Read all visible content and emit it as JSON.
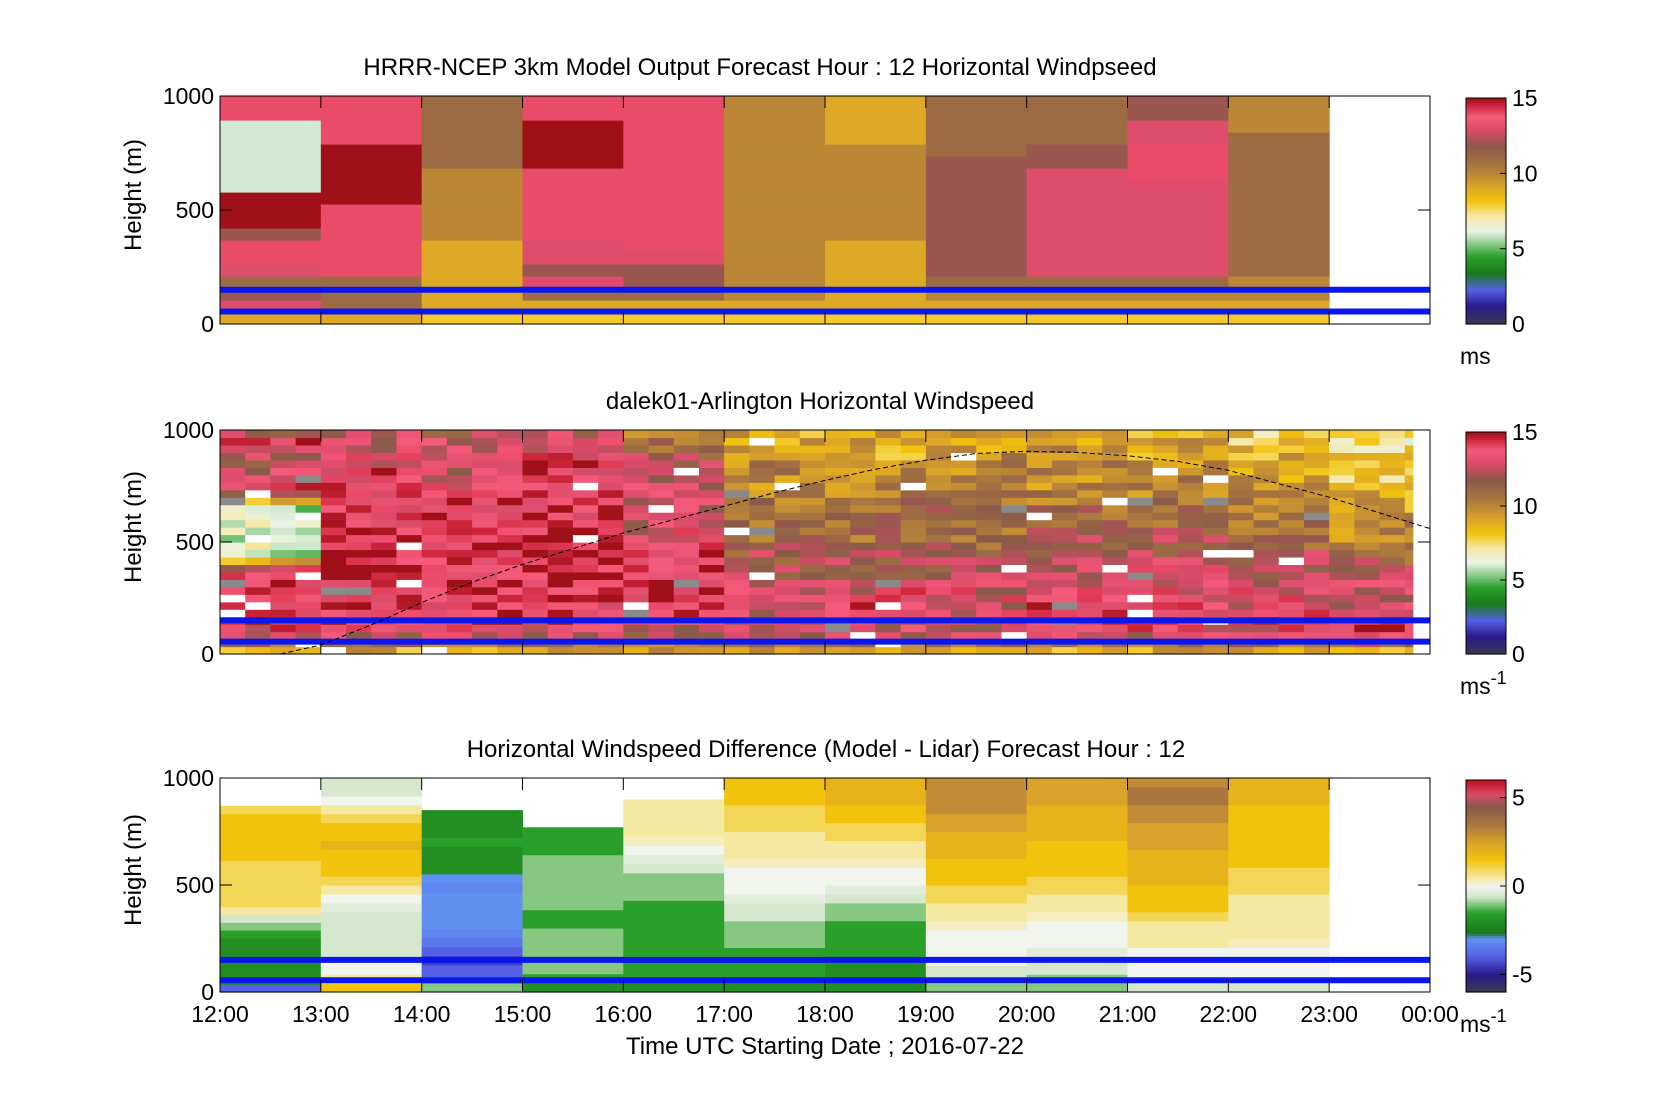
{
  "chart_data": [
    {
      "type": "heatmap",
      "title": "HRRR-NCEP 3km Model Output   Forecast Hour : 12 Horizontal Windpseed",
      "ylabel": "Height (m)",
      "ylim": [
        0,
        1000
      ],
      "yticks": [
        "0",
        "500",
        "1000"
      ],
      "xlim_hours": [
        12,
        24
      ],
      "colorbar": {
        "min": 0,
        "max": 15,
        "ticks": [
          "0",
          "5",
          "10",
          "15"
        ],
        "unit_main": "ms",
        "unit_sup": ""
      },
      "color_stops": [
        [
          0,
          "#3a3a50"
        ],
        [
          1.2,
          "#2a1a8a"
        ],
        [
          2.3,
          "#5560e6"
        ],
        [
          3.4,
          "#1a7a1a"
        ],
        [
          4.5,
          "#2aa02a"
        ],
        [
          6.2,
          "#eaf4e8"
        ],
        [
          7.2,
          "#f5e8a0"
        ],
        [
          8.2,
          "#f2c30c"
        ],
        [
          9.2,
          "#d9a22a"
        ],
        [
          10.5,
          "#a9763f"
        ],
        [
          11.8,
          "#8a5a4a"
        ],
        [
          12.8,
          "#d84a68"
        ],
        [
          13.8,
          "#f55a7a"
        ],
        [
          14.5,
          "#d0263e"
        ],
        [
          15,
          "#a01018"
        ]
      ],
      "reference_lines_m": [
        150,
        55
      ],
      "blocks": [
        {
          "hour": 12,
          "v": [
            9,
            13,
            12,
            11,
            13,
            14,
            14,
            12,
            15,
            15,
            15,
            6,
            6,
            6,
            6,
            6,
            6,
            14,
            14
          ]
        },
        {
          "hour": 13,
          "v": [
            9,
            11,
            11,
            11,
            14,
            14,
            14,
            14,
            14,
            14,
            15,
            15,
            15,
            15,
            15,
            14,
            14,
            14,
            14
          ]
        },
        {
          "hour": 14,
          "v": [
            8,
            9,
            9,
            9,
            9,
            9,
            9,
            10,
            10,
            10,
            10,
            10,
            10,
            11,
            11,
            11,
            11,
            11,
            11
          ]
        },
        {
          "hour": 15,
          "v": [
            8,
            9,
            11,
            13,
            12,
            13,
            13,
            14,
            14,
            14,
            14,
            14,
            14,
            15,
            15,
            15,
            15,
            14,
            14
          ]
        },
        {
          "hour": 16,
          "v": [
            8,
            9,
            11,
            12,
            12,
            13,
            14,
            14,
            14,
            14,
            14,
            14,
            14,
            14,
            14,
            14,
            14,
            14,
            14
          ]
        },
        {
          "hour": 17,
          "v": [
            8,
            9,
            10,
            10,
            10,
            10,
            10,
            10,
            10,
            10,
            10,
            10,
            10,
            10,
            10,
            10,
            10,
            10,
            10
          ]
        },
        {
          "hour": 18,
          "v": [
            8,
            9,
            9,
            9,
            9,
            9,
            9,
            10,
            10,
            10,
            10,
            10,
            10,
            10,
            10,
            9,
            9,
            9,
            9
          ]
        },
        {
          "hour": 19,
          "v": [
            8,
            9,
            10,
            11,
            12,
            12,
            12,
            12,
            12,
            12,
            12,
            12,
            12,
            12,
            11,
            11,
            11,
            11,
            11
          ]
        },
        {
          "hour": 20,
          "v": [
            8,
            9,
            10,
            11,
            13,
            13,
            13,
            13,
            13,
            13,
            13,
            13,
            13,
            12,
            12,
            11,
            11,
            11,
            11
          ]
        },
        {
          "hour": 21,
          "v": [
            8,
            9,
            10,
            11,
            13,
            13,
            13,
            13,
            13,
            13,
            13,
            13,
            14,
            14,
            14,
            13,
            13,
            12,
            12
          ]
        },
        {
          "hour": 22,
          "v": [
            8,
            9,
            10,
            10,
            11,
            11,
            11,
            11,
            11,
            11,
            11,
            11,
            11,
            11,
            11,
            11,
            10,
            10,
            10
          ]
        }
      ]
    },
    {
      "type": "heatmap",
      "title": "dalek01-Arlington  Horizontal Windspeed",
      "ylabel": "Height (m)",
      "ylim": [
        0,
        1000
      ],
      "yticks": [
        "0",
        "500",
        "1000"
      ],
      "xlim_hours": [
        12,
        24
      ],
      "colorbar": {
        "min": 0,
        "max": 15,
        "ticks": [
          "0",
          "5",
          "10",
          "15"
        ],
        "unit_main": "ms",
        "unit_sup": "-1"
      },
      "reference_lines_m": [
        150,
        55
      ],
      "profile_segments_per_hour": 4,
      "profile_end_hour": 23.83,
      "hourly_mean": [
        {
          "hour": 12,
          "v": [
            9,
            13,
            14,
            14,
            14,
            14,
            6,
            6,
            6,
            6,
            14,
            13,
            12,
            14,
            10
          ]
        },
        {
          "hour": 13,
          "v": [
            9,
            13,
            14,
            14,
            14,
            15,
            15,
            15,
            14,
            14,
            14,
            14,
            13,
            13,
            12
          ]
        },
        {
          "hour": 14,
          "v": [
            9,
            13,
            14,
            14,
            15,
            14,
            14,
            14,
            14,
            14,
            14,
            13,
            13,
            13,
            11
          ]
        },
        {
          "hour": 15,
          "v": [
            9,
            13,
            14,
            14,
            14,
            15,
            15,
            15,
            14,
            14,
            14,
            14,
            14,
            13,
            12
          ]
        },
        {
          "hour": 16,
          "v": [
            9,
            12,
            14,
            14,
            14,
            14,
            14,
            13,
            13,
            13,
            13,
            13,
            12,
            11,
            10
          ]
        },
        {
          "hour": 17,
          "v": [
            9,
            13,
            13,
            13,
            13,
            12,
            12,
            11,
            11,
            11,
            10,
            10,
            10,
            9,
            9
          ]
        },
        {
          "hour": 18,
          "v": [
            9,
            13,
            13,
            14,
            13,
            12,
            12,
            11,
            11,
            11,
            10,
            10,
            9,
            9,
            9
          ]
        },
        {
          "hour": 19,
          "v": [
            9,
            13,
            13,
            13,
            13,
            12,
            12,
            11,
            11,
            11,
            10,
            10,
            10,
            9,
            9
          ]
        },
        {
          "hour": 20,
          "v": [
            9,
            13,
            14,
            14,
            13,
            13,
            12,
            12,
            11,
            11,
            10,
            10,
            10,
            9,
            9
          ]
        },
        {
          "hour": 21,
          "v": [
            9,
            13,
            14,
            14,
            13,
            13,
            12,
            12,
            11,
            11,
            10,
            10,
            9,
            9,
            9
          ]
        },
        {
          "hour": 22,
          "v": [
            9,
            13,
            14,
            13,
            13,
            12,
            12,
            11,
            11,
            10,
            10,
            9,
            9,
            8,
            8
          ]
        },
        {
          "hour": 23,
          "v": [
            9,
            14,
            14,
            13,
            13,
            12,
            11,
            10,
            10,
            9,
            9,
            8,
            8,
            7,
            7
          ]
        }
      ],
      "dashed_curve": {
        "x_hours": [
          12.6,
          13.0,
          13.5,
          14.0,
          14.5,
          15.0,
          15.5,
          16.0,
          16.5,
          17.0,
          17.5,
          18.0,
          18.5,
          19.0,
          19.5,
          20.0,
          20.5,
          21.0,
          21.5,
          22.0,
          22.5,
          23.0,
          23.5,
          24.0
        ],
        "y_m": [
          0,
          40,
          130,
          230,
          320,
          400,
          470,
          540,
          600,
          660,
          720,
          775,
          825,
          865,
          895,
          905,
          900,
          885,
          860,
          820,
          760,
          700,
          630,
          560
        ]
      }
    },
    {
      "type": "heatmap",
      "title": "Horizontal Windspeed Difference (Model - Lidar) Forecast Hour : 12",
      "ylabel": "Height (m)",
      "xlabel": "Time UTC  Starting Date ; 2016-07-22",
      "ylim": [
        0,
        1000
      ],
      "yticks": [
        "0",
        "500",
        "1000"
      ],
      "xlim_hours": [
        12,
        24
      ],
      "xticks": [
        "12:00",
        "13:00",
        "14:00",
        "15:00",
        "16:00",
        "17:00",
        "18:00",
        "19:00",
        "20:00",
        "21:00",
        "22:00",
        "23:00",
        "00:00"
      ],
      "colorbar": {
        "min": -6,
        "max": 6,
        "ticks": [
          "-5",
          "0",
          "5"
        ],
        "unit_main": "ms",
        "unit_sup": "-1"
      },
      "diff_color_stops": [
        [
          -6,
          "#3a3a50"
        ],
        [
          -5,
          "#2a1a8a"
        ],
        [
          -4,
          "#5560e6"
        ],
        [
          -3,
          "#6090f0"
        ],
        [
          -2.6,
          "#1a7a1a"
        ],
        [
          -1.5,
          "#2aa02a"
        ],
        [
          -0.6,
          "#cfe6c8"
        ],
        [
          0,
          "#f2f4ee"
        ],
        [
          0.5,
          "#f5e8a0"
        ],
        [
          1.5,
          "#f2c30c"
        ],
        [
          2.5,
          "#d9a22a"
        ],
        [
          3.5,
          "#a9763f"
        ],
        [
          4.5,
          "#8a5a4a"
        ],
        [
          5.2,
          "#d84a68"
        ],
        [
          6,
          "#c01020"
        ]
      ],
      "reference_lines_m": [
        150,
        55
      ],
      "blocks": [
        {
          "hour": 12,
          "top": 870,
          "v": [
            -4,
            -2,
            -2,
            -2,
            -2,
            -2,
            -2,
            -1.5,
            -1,
            -0.5,
            0.5,
            1,
            1,
            1,
            1,
            1,
            1,
            1.5,
            1.5,
            1.5,
            1.5,
            1.5,
            1.5,
            1
          ]
        },
        {
          "hour": 13,
          "top": 1000,
          "v": [
            1.5,
            0.5,
            0,
            0,
            -0.5,
            -0.5,
            -0.5,
            -0.5,
            -0.5,
            -0.3,
            0,
            0.5,
            1,
            1.5,
            1.5,
            1.5,
            2,
            1.5,
            1.5,
            1,
            0.5,
            0,
            -0.5,
            -0.5
          ]
        },
        {
          "hour": 14,
          "top": 850,
          "v": [
            -1,
            -4,
            -4,
            -4.5,
            -4,
            -3.5,
            -3.2,
            -3,
            -3,
            -3,
            -3,
            -3.2,
            -3,
            -2,
            -2,
            -2,
            -1.5,
            -2,
            -2,
            -2
          ]
        },
        {
          "hour": 15,
          "top": 770,
          "v": [
            -2,
            -1.5,
            -1,
            -1,
            -1,
            -1,
            -1,
            -1.5,
            -1.5,
            -1,
            -1,
            -1,
            -1,
            -1,
            -1,
            -1.5,
            -1.5,
            -1.5
          ]
        },
        {
          "hour": 16,
          "top": 900,
          "v": [
            -2,
            -1.5,
            -1.5,
            -1.5,
            -1.5,
            -1.5,
            -1.5,
            -1.5,
            -1.5,
            -1.5,
            -1,
            -1,
            -1,
            -0.5,
            -0.3,
            0,
            0.3,
            0.5,
            0.5,
            0.5,
            0.5
          ]
        },
        {
          "hour": 17,
          "top": 1000,
          "v": [
            -2,
            -1.5,
            -1.5,
            -1.5,
            -1.5,
            -1,
            -1,
            -1,
            -0.5,
            -0.5,
            -0.3,
            0,
            0,
            0,
            0.3,
            0.5,
            0.5,
            0.5,
            1,
            1,
            1,
            1.5,
            1.5,
            1.5
          ]
        },
        {
          "hour": 18,
          "top": 1000,
          "v": [
            -2,
            -2,
            -2,
            -2,
            -1.5,
            -1.5,
            -1.5,
            -1.5,
            -1,
            -1,
            -0.5,
            -0.3,
            0,
            0,
            0.3,
            0.5,
            0.5,
            1,
            1,
            1.5,
            1.5,
            2,
            2,
            2
          ]
        },
        {
          "hour": 19,
          "top": 1000,
          "v": [
            -1,
            -0.5,
            -0.5,
            0,
            0,
            0,
            0,
            0.3,
            0.5,
            0.5,
            1,
            1,
            1.5,
            1.5,
            1.5,
            2,
            2,
            2,
            2.5,
            2.5,
            3,
            3,
            3,
            3
          ]
        },
        {
          "hour": 20,
          "top": 1000,
          "v": [
            -1,
            -1,
            -0.5,
            -0.5,
            -0.3,
            0,
            0,
            0,
            0.3,
            0.5,
            0.5,
            1,
            1,
            1.5,
            1.5,
            1.5,
            1.5,
            2,
            2,
            2,
            2,
            2.5,
            2.5,
            2.5
          ]
        },
        {
          "hour": 21,
          "top": 1000,
          "v": [
            -0.5,
            0,
            0,
            0,
            0,
            0.5,
            0.5,
            0.5,
            1,
            1.5,
            1.5,
            1.5,
            2,
            2,
            2,
            2,
            2.5,
            2.5,
            2.5,
            3,
            3,
            3.5,
            3.5,
            3
          ]
        },
        {
          "hour": 22,
          "top": 1000,
          "v": [
            -0.5,
            0,
            0,
            0,
            0,
            0.3,
            0.5,
            0.5,
            0.5,
            0.5,
            0.5,
            1,
            1,
            1,
            1.5,
            1.5,
            1.5,
            1.5,
            1.5,
            1.5,
            1.5,
            2,
            2,
            2
          ]
        }
      ]
    }
  ]
}
